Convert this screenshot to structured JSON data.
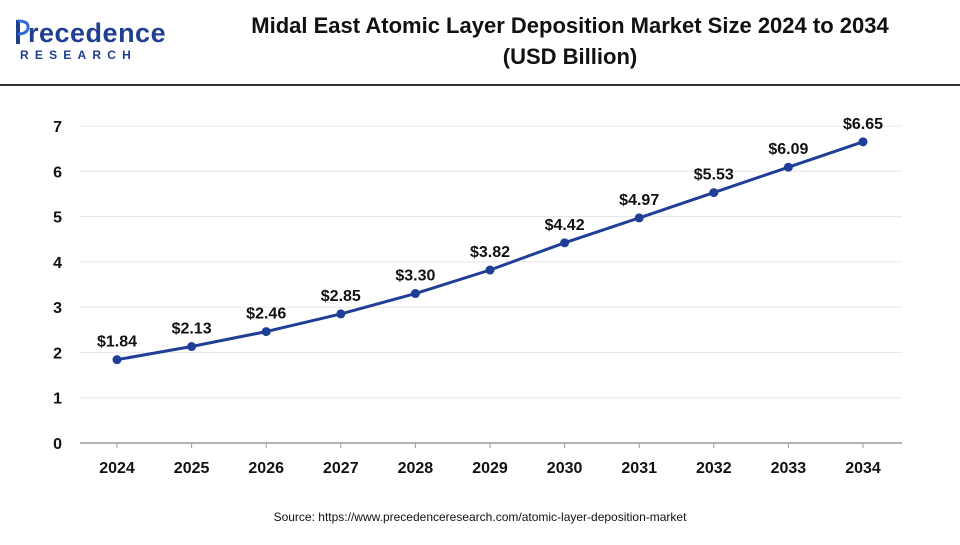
{
  "header": {
    "logo_word": "recedence",
    "logo_initial": "P",
    "logo_sub": "RESEARCH",
    "title_line1": "Midal East Atomic Layer Deposition Market Size 2024 to 2034",
    "title_line2": "(USD Billion)"
  },
  "source": "Source: https://www.precedenceresearch.com/atomic-layer-deposition-market",
  "colors": {
    "line": "#1f3f96",
    "marker": "#1f3f96",
    "grid": "#e6e6e6",
    "axis": "#999999",
    "brand": "#1f3f8f",
    "logo_accent": "#2d6fd6"
  },
  "chart_data": {
    "type": "line",
    "title": "Midal East Atomic Layer Deposition Market Size 2024 to 2034 (USD Billion)",
    "categories": [
      "2024",
      "2025",
      "2026",
      "2027",
      "2028",
      "2029",
      "2030",
      "2031",
      "2032",
      "2033",
      "2034"
    ],
    "series": [
      {
        "values": [
          1.84,
          2.13,
          2.46,
          2.85,
          3.3,
          3.82,
          4.42,
          4.97,
          5.53,
          6.09,
          6.65
        ],
        "labels": [
          "$1.84",
          "$2.13",
          "$2.46",
          "$2.85",
          "$3.30",
          "$3.82",
          "$4.42",
          "$4.97",
          "$5.53",
          "$6.09",
          "$6.65"
        ]
      }
    ],
    "ylim": [
      0,
      7
    ],
    "yticks": [
      "0",
      "1",
      "2",
      "3",
      "4",
      "5",
      "6",
      "7"
    ],
    "grid": true,
    "xlabel": "",
    "ylabel": ""
  }
}
